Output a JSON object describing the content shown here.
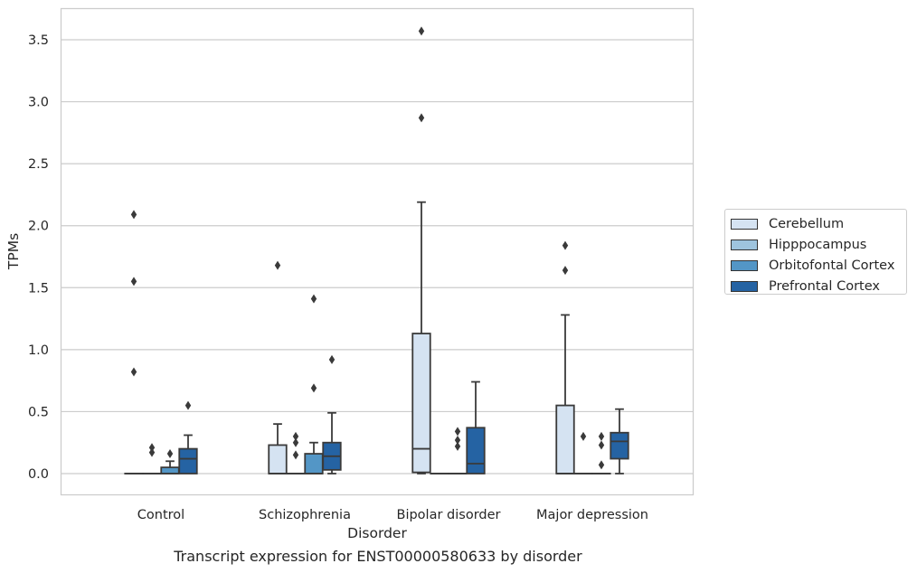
{
  "chart_data": {
    "type": "box",
    "xlabel": "Disorder",
    "ylabel": "TPMs",
    "ylim": [
      -0.17,
      3.75
    ],
    "yticks": [
      0.0,
      0.5,
      1.0,
      1.5,
      2.0,
      2.5,
      3.0,
      3.5
    ],
    "ytick_labels": [
      "0.0",
      "0.5",
      "1.0",
      "1.5",
      "2.0",
      "2.5",
      "3.0",
      "3.5"
    ],
    "grid": "horizontal",
    "legend_position": "right",
    "categories": [
      "Control",
      "Schizophrenia",
      "Bipolar disorder",
      "Major depression"
    ],
    "series": [
      {
        "name": "Cerebellum",
        "color": "#d5e3f2",
        "boxes": [
          {
            "q1": 0,
            "median": 0,
            "q3": 0,
            "whisker_low": 0,
            "whisker_high": 0,
            "outliers": [
              2.09,
              1.55,
              0.82
            ]
          },
          {
            "q1": 0,
            "median": 0,
            "q3": 0.23,
            "whisker_low": 0,
            "whisker_high": 0.4,
            "outliers": [
              1.68
            ]
          },
          {
            "q1": 0.01,
            "median": 0.2,
            "q3": 1.13,
            "whisker_low": 0,
            "whisker_high": 2.19,
            "outliers": [
              3.57,
              2.87
            ]
          },
          {
            "q1": 0,
            "median": 0,
            "q3": 0.55,
            "whisker_low": 0,
            "whisker_high": 1.28,
            "outliers": [
              1.84,
              1.64
            ]
          }
        ]
      },
      {
        "name": "Hipppocampus",
        "color": "#9ec4de",
        "boxes": [
          {
            "q1": 0,
            "median": 0,
            "q3": 0,
            "whisker_low": 0,
            "whisker_high": 0,
            "outliers": [
              0.21,
              0.17
            ]
          },
          {
            "q1": 0,
            "median": 0,
            "q3": 0,
            "whisker_low": 0,
            "whisker_high": 0,
            "outliers": [
              0.3,
              0.25,
              0.15
            ]
          },
          {
            "q1": 0,
            "median": 0,
            "q3": 0,
            "whisker_low": 0,
            "whisker_high": 0,
            "outliers": []
          },
          {
            "q1": 0,
            "median": 0,
            "q3": 0,
            "whisker_low": 0,
            "whisker_high": 0,
            "outliers": [
              0.3
            ]
          }
        ]
      },
      {
        "name": "Orbitofontal Cortex",
        "color": "#5396c6",
        "boxes": [
          {
            "q1": 0,
            "median": 0,
            "q3": 0.05,
            "whisker_low": 0,
            "whisker_high": 0.1,
            "outliers": [
              0.16
            ]
          },
          {
            "q1": 0,
            "median": 0,
            "q3": 0.16,
            "whisker_low": 0,
            "whisker_high": 0.25,
            "outliers": [
              1.41,
              0.69
            ]
          },
          {
            "q1": 0,
            "median": 0,
            "q3": 0,
            "whisker_low": 0,
            "whisker_high": 0,
            "outliers": [
              0.34,
              0.27,
              0.22
            ]
          },
          {
            "q1": 0,
            "median": 0,
            "q3": 0,
            "whisker_low": 0,
            "whisker_high": 0,
            "outliers": [
              0.3,
              0.23,
              0.07
            ]
          }
        ]
      },
      {
        "name": "Prefrontal Cortex",
        "color": "#2563a3",
        "boxes": [
          {
            "q1": 0,
            "median": 0.12,
            "q3": 0.2,
            "whisker_low": 0,
            "whisker_high": 0.31,
            "outliers": [
              0.55
            ]
          },
          {
            "q1": 0.03,
            "median": 0.14,
            "q3": 0.25,
            "whisker_low": 0,
            "whisker_high": 0.49,
            "outliers": [
              0.92
            ]
          },
          {
            "q1": 0,
            "median": 0.08,
            "q3": 0.37,
            "whisker_low": 0,
            "whisker_high": 0.74,
            "outliers": []
          },
          {
            "q1": 0.12,
            "median": 0.26,
            "q3": 0.33,
            "whisker_low": 0,
            "whisker_high": 0.52,
            "outliers": []
          }
        ]
      }
    ]
  },
  "caption": "Transcript expression for ENST00000580633 by disorder"
}
